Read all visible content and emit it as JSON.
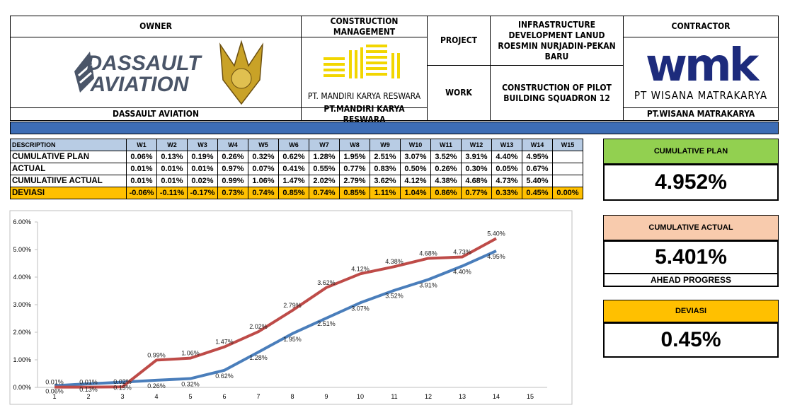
{
  "header": {
    "owner": {
      "title": "OWNER",
      "logo_lines": [
        "DASSAULT",
        "AVIATION"
      ],
      "name": "DASSAULT AVIATION"
    },
    "construction_management": {
      "title": "CONSTRUCTION MANAGEMENT",
      "logo_caption": "PT. MANDIRI KARYA RESWARA",
      "name": "PT.MANDIRI KARYA RESWARA"
    },
    "project": {
      "label": "PROJECT",
      "value": "INFRASTRUCTURE DEVELOPMENT LANUD ROESMIN NURJADIN-PEKAN BARU"
    },
    "work": {
      "label": "WORK",
      "value": "CONSTRUCTION OF PILOT BUILDING SQUADRON 12"
    },
    "contractor": {
      "title": "CONTRACTOR",
      "logo_mark": "wmk",
      "logo_caption": "PT WISANA MATRAKARYA",
      "name": "PT.WISANA MATRAKARYA"
    }
  },
  "table": {
    "columns": [
      "DESCRIPTION",
      "W1",
      "W2",
      "W3",
      "W4",
      "W5",
      "W6",
      "W7",
      "W8",
      "W9",
      "W10",
      "W11",
      "W12",
      "W13",
      "W14",
      "W15"
    ],
    "rows": [
      [
        "CUMULATIVE PLAN",
        "0.06%",
        "0.13%",
        "0.19%",
        "0.26%",
        "0.32%",
        "0.62%",
        "1.28%",
        "1.95%",
        "2.51%",
        "3.07%",
        "3.52%",
        "3.91%",
        "4.40%",
        "4.95%",
        null
      ],
      [
        "ACTUAL",
        "0.01%",
        "0.01%",
        "0.01%",
        "0.97%",
        "0.07%",
        "0.41%",
        "0.55%",
        "0.77%",
        "0.83%",
        "0.50%",
        "0.26%",
        "0.30%",
        "0.05%",
        "0.67%",
        null
      ],
      [
        "CUMULATIIVE ACTUAL",
        "0.01%",
        "0.01%",
        "0.02%",
        "0.99%",
        "1.06%",
        "1.47%",
        "2.02%",
        "2.79%",
        "3.62%",
        "4.12%",
        "4.38%",
        "4.68%",
        "4.73%",
        "5.40%",
        null
      ],
      [
        "DEVIASI",
        "-0.06%",
        "-0.11%",
        "-0.17%",
        "0.73%",
        "0.74%",
        "0.85%",
        "0.74%",
        "0.85%",
        "1.11%",
        "1.04%",
        "0.86%",
        "0.77%",
        "0.33%",
        "0.45%",
        "0.00%"
      ]
    ]
  },
  "kpis": [
    {
      "title": "CUMULATIVE PLAN",
      "value": "4.952%",
      "color": "#92d050"
    },
    {
      "title": "CUMULATIVE ACTUAL",
      "value": "5.401%",
      "note": "AHEAD PROGRESS",
      "color": "#f8cbad"
    },
    {
      "title": "DEVIASI",
      "value": "0.45%",
      "color": "#ffc000"
    }
  ],
  "chart_data": {
    "type": "line",
    "categories": [
      "1",
      "2",
      "3",
      "4",
      "5",
      "6",
      "7",
      "8",
      "9",
      "10",
      "11",
      "12",
      "13",
      "14",
      "15"
    ],
    "ylim": [
      0,
      6
    ],
    "yticks": [
      {
        "value": 0,
        "label": "0.00%"
      },
      {
        "value": 1,
        "label": "1.00%"
      },
      {
        "value": 2,
        "label": "2.00%"
      },
      {
        "value": 3,
        "label": "3.00%"
      },
      {
        "value": 4,
        "label": "4.00%"
      },
      {
        "value": 5,
        "label": "5.00%"
      },
      {
        "value": 6,
        "label": "6.00%"
      }
    ],
    "series": [
      {
        "name": "CUMULATIVE PLAN",
        "color": "#4a7ebb",
        "values": [
          0.06,
          0.13,
          0.19,
          0.26,
          0.32,
          0.62,
          1.28,
          1.95,
          2.51,
          3.07,
          3.52,
          3.91,
          4.4,
          4.95,
          null
        ],
        "value_labels": [
          "0.06%",
          "0.13%",
          "0.19%",
          "0.26%",
          "0.32%",
          "0.62%",
          "1.28%",
          "1.95%",
          "2.51%",
          "3.07%",
          "3.52%",
          "3.91%",
          "4.40%",
          "4.95%",
          null
        ]
      },
      {
        "name": "CUMULATIIVE ACTUAL",
        "color": "#be4b48",
        "values": [
          0.01,
          0.01,
          0.02,
          0.99,
          1.06,
          1.47,
          2.02,
          2.79,
          3.62,
          4.12,
          4.38,
          4.68,
          4.73,
          5.4,
          null
        ],
        "value_labels": [
          "0.01%",
          "0.01%",
          "0.02%",
          "0.99%",
          "1.06%",
          "1.47%",
          "2.02%",
          "2.79%",
          "3.62%",
          "4.12%",
          "4.38%",
          "4.68%",
          "4.73%",
          "5.40%",
          null
        ]
      }
    ]
  }
}
